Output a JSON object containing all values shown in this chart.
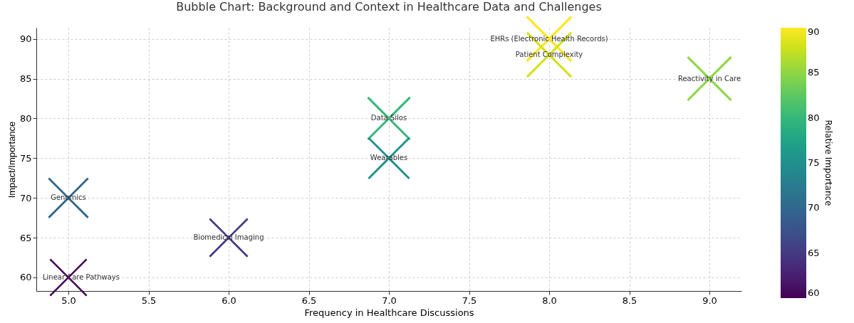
{
  "chart_data": {
    "type": "bubble",
    "title": "Bubble Chart: Background and Context in Healthcare Data and Challenges",
    "xlabel": "Frequency in Healthcare Discussions",
    "ylabel": "Impact/Importance",
    "clabel": "Relative Importance",
    "x": [
      8,
      5,
      9,
      7,
      6,
      7,
      8,
      5
    ],
    "values": [
      90,
      70,
      85,
      80,
      65,
      75,
      88,
      60
    ],
    "sizes": [
      1,
      0.778,
      0.944,
      0.889,
      0.722,
      0.833,
      0.978,
      0.667
    ],
    "cvalues": [
      90,
      70,
      85,
      80,
      65,
      75,
      88,
      60
    ],
    "clim": [
      60,
      90
    ],
    "cticks": [
      60,
      65,
      70,
      75,
      80,
      85,
      90
    ],
    "xlim": [
      4.8,
      9.2
    ],
    "xticks": [
      {
        "value": 5,
        "label": "5.0"
      },
      5.5,
      {
        "value": 6,
        "label": "6.0"
      },
      6.5,
      {
        "value": 7,
        "label": "7.0"
      },
      7.5,
      {
        "value": 8,
        "label": "8.0"
      },
      8.5,
      {
        "value": 9,
        "label": "9.0"
      }
    ],
    "ylim": [
      58.3,
      91.4
    ],
    "yticks": [
      60,
      65,
      70,
      75,
      80,
      85,
      90
    ],
    "grid": true,
    "marker": "cross",
    "annotations": [
      {
        "text": "EHRs (Electronic Health Records)",
        "x": 8,
        "y": 90
      },
      {
        "text": "Genomics",
        "x": 5,
        "y": 70
      },
      {
        "text": "Reactivity in Care",
        "x": 9,
        "y": 85
      },
      {
        "text": "Data Silos",
        "x": 7,
        "y": 80
      },
      {
        "text": "Biomedical Imaging",
        "x": 6,
        "y": 65
      },
      {
        "text": "Wearables",
        "x": 7,
        "y": 75
      },
      {
        "text": "Patient Complexity",
        "x": 8,
        "y": 88
      },
      {
        "text": "Linear Care Pathways",
        "x": 5,
        "y": 60
      }
    ]
  }
}
